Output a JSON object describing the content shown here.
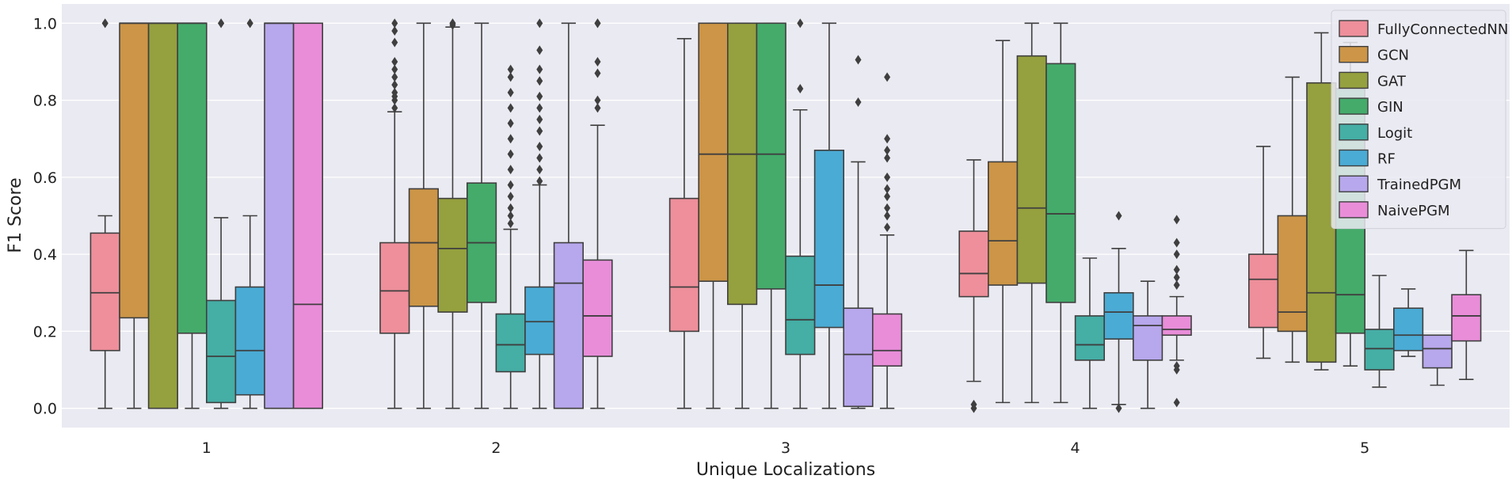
{
  "chart_data": {
    "type": "boxplot",
    "xlabel": "Unique Localizations",
    "ylabel": "F1 Score",
    "ylim": [
      -0.05,
      1.05
    ],
    "yticks": [
      0.0,
      0.2,
      0.4,
      0.6,
      0.8,
      1.0
    ],
    "ytick_labels": [
      "0.0",
      "0.2",
      "0.4",
      "0.6",
      "0.8",
      "1.0"
    ],
    "categories": [
      "1",
      "2",
      "3",
      "4",
      "5"
    ],
    "grid": true,
    "legend_position": "top-right",
    "series": [
      {
        "name": "FullyConnectedNN",
        "color": "#ee8f9b",
        "boxes": [
          {
            "whislo": 0.0,
            "q1": 0.15,
            "med": 0.3,
            "q3": 0.455,
            "whishi": 0.5,
            "fliers": [
              1.0,
              1.0
            ]
          },
          {
            "whislo": 0.0,
            "q1": 0.195,
            "med": 0.305,
            "q3": 0.43,
            "whishi": 0.77,
            "fliers": [
              0.78,
              0.8,
              0.81,
              0.82,
              0.84,
              0.86,
              0.88,
              0.9,
              0.95,
              0.98,
              1.0
            ]
          },
          {
            "whislo": 0.0,
            "q1": 0.2,
            "med": 0.315,
            "q3": 0.545,
            "whishi": 0.96,
            "fliers": []
          },
          {
            "whislo": 0.07,
            "q1": 0.29,
            "med": 0.35,
            "q3": 0.46,
            "whishi": 0.645,
            "fliers": [
              0.0,
              0.01
            ]
          },
          {
            "whislo": 0.13,
            "q1": 0.21,
            "med": 0.335,
            "q3": 0.4,
            "whishi": 0.68,
            "fliers": []
          }
        ]
      },
      {
        "name": "GCN",
        "color": "#cc9547",
        "boxes": [
          {
            "whislo": 0.0,
            "q1": 0.235,
            "med": 1.0,
            "q3": 1.0,
            "whishi": 1.0,
            "fliers": []
          },
          {
            "whislo": 0.0,
            "q1": 0.265,
            "med": 0.43,
            "q3": 0.57,
            "whishi": 1.0,
            "fliers": []
          },
          {
            "whislo": 0.0,
            "q1": 0.33,
            "med": 0.66,
            "q3": 1.0,
            "whishi": 1.0,
            "fliers": []
          },
          {
            "whislo": 0.015,
            "q1": 0.32,
            "med": 0.435,
            "q3": 0.64,
            "whishi": 0.955,
            "fliers": []
          },
          {
            "whislo": 0.12,
            "q1": 0.2,
            "med": 0.25,
            "q3": 0.5,
            "whishi": 0.86,
            "fliers": []
          }
        ]
      },
      {
        "name": "GAT",
        "color": "#95a03e",
        "boxes": [
          {
            "whislo": 0.0,
            "q1": 0.0,
            "med": 1.0,
            "q3": 1.0,
            "whishi": 1.0,
            "fliers": []
          },
          {
            "whislo": 0.0,
            "q1": 0.25,
            "med": 0.415,
            "q3": 0.545,
            "whishi": 0.99,
            "fliers": [
              0.995,
              1.0,
              1.0
            ]
          },
          {
            "whislo": 0.0,
            "q1": 0.27,
            "med": 0.66,
            "q3": 1.0,
            "whishi": 1.0,
            "fliers": []
          },
          {
            "whislo": 0.015,
            "q1": 0.325,
            "med": 0.52,
            "q3": 0.915,
            "whishi": 1.0,
            "fliers": []
          },
          {
            "whislo": 0.1,
            "q1": 0.12,
            "med": 0.3,
            "q3": 0.845,
            "whishi": 0.975,
            "fliers": []
          }
        ]
      },
      {
        "name": "GIN",
        "color": "#44ab6b",
        "boxes": [
          {
            "whislo": 0.0,
            "q1": 0.195,
            "med": 1.0,
            "q3": 1.0,
            "whishi": 1.0,
            "fliers": []
          },
          {
            "whislo": 0.0,
            "q1": 0.275,
            "med": 0.43,
            "q3": 0.585,
            "whishi": 1.0,
            "fliers": []
          },
          {
            "whislo": 0.0,
            "q1": 0.31,
            "med": 0.66,
            "q3": 1.0,
            "whishi": 1.0,
            "fliers": []
          },
          {
            "whislo": 0.015,
            "q1": 0.275,
            "med": 0.505,
            "q3": 0.895,
            "whishi": 1.0,
            "fliers": []
          },
          {
            "whislo": 0.11,
            "q1": 0.195,
            "med": 0.295,
            "q3": 0.83,
            "whishi": 0.95,
            "fliers": []
          }
        ]
      },
      {
        "name": "Logit",
        "color": "#45aea5",
        "boxes": [
          {
            "whislo": 0.0,
            "q1": 0.015,
            "med": 0.135,
            "q3": 0.28,
            "whishi": 0.495,
            "fliers": [
              1.0,
              1.0
            ]
          },
          {
            "whislo": 0.0,
            "q1": 0.095,
            "med": 0.165,
            "q3": 0.245,
            "whishi": 0.465,
            "fliers": [
              0.48,
              0.5,
              0.52,
              0.55,
              0.58,
              0.62,
              0.66,
              0.7,
              0.74,
              0.78,
              0.82,
              0.86,
              0.88
            ]
          },
          {
            "whislo": 0.0,
            "q1": 0.14,
            "med": 0.23,
            "q3": 0.395,
            "whishi": 0.775,
            "fliers": [
              0.83,
              1.0
            ]
          },
          {
            "whislo": 0.0,
            "q1": 0.125,
            "med": 0.165,
            "q3": 0.24,
            "whishi": 0.39,
            "fliers": []
          },
          {
            "whislo": 0.055,
            "q1": 0.1,
            "med": 0.155,
            "q3": 0.205,
            "whishi": 0.345,
            "fliers": []
          }
        ]
      },
      {
        "name": "RF",
        "color": "#4aabd5",
        "boxes": [
          {
            "whislo": 0.0,
            "q1": 0.035,
            "med": 0.15,
            "q3": 0.315,
            "whishi": 0.5,
            "fliers": [
              1.0,
              1.0
            ]
          },
          {
            "whislo": 0.0,
            "q1": 0.14,
            "med": 0.225,
            "q3": 0.315,
            "whishi": 0.58,
            "fliers": [
              0.59,
              0.62,
              0.65,
              0.68,
              0.72,
              0.75,
              0.78,
              0.81,
              0.85,
              0.88,
              0.93,
              1.0
            ]
          },
          {
            "whislo": 0.0,
            "q1": 0.21,
            "med": 0.32,
            "q3": 0.67,
            "whishi": 1.0,
            "fliers": []
          },
          {
            "whislo": 0.01,
            "q1": 0.18,
            "med": 0.25,
            "q3": 0.3,
            "whishi": 0.415,
            "fliers": [
              0.5,
              0.0
            ]
          },
          {
            "whislo": 0.135,
            "q1": 0.15,
            "med": 0.19,
            "q3": 0.26,
            "whishi": 0.31,
            "fliers": []
          }
        ]
      },
      {
        "name": "TrainedPGM",
        "color": "#b7a7ec",
        "boxes": [
          {
            "whislo": 0.0,
            "q1": 0.0,
            "med": 1.0,
            "q3": 1.0,
            "whishi": 1.0,
            "fliers": []
          },
          {
            "whislo": 0.0,
            "q1": 0.0,
            "med": 0.325,
            "q3": 0.43,
            "whishi": 1.0,
            "fliers": []
          },
          {
            "whislo": 0.0,
            "q1": 0.005,
            "med": 0.14,
            "q3": 0.26,
            "whishi": 0.64,
            "fliers": [
              0.795,
              0.905
            ]
          },
          {
            "whislo": 0.0,
            "q1": 0.125,
            "med": 0.215,
            "q3": 0.24,
            "whishi": 0.33,
            "fliers": []
          },
          {
            "whislo": 0.06,
            "q1": 0.105,
            "med": 0.155,
            "q3": 0.19,
            "whishi": 0.19,
            "fliers": []
          }
        ]
      },
      {
        "name": "NaivePGM",
        "color": "#e98dd9",
        "boxes": [
          {
            "whislo": 0.0,
            "q1": 0.0,
            "med": 0.27,
            "q3": 1.0,
            "whishi": 1.0,
            "fliers": []
          },
          {
            "whislo": 0.0,
            "q1": 0.135,
            "med": 0.24,
            "q3": 0.385,
            "whishi": 0.735,
            "fliers": [
              0.78,
              0.8,
              0.87,
              0.9,
              1.0,
              1.0
            ]
          },
          {
            "whislo": 0.0,
            "q1": 0.11,
            "med": 0.15,
            "q3": 0.245,
            "whishi": 0.45,
            "fliers": [
              0.47,
              0.5,
              0.52,
              0.55,
              0.57,
              0.6,
              0.65,
              0.67,
              0.7,
              0.86
            ]
          },
          {
            "whislo": 0.125,
            "q1": 0.19,
            "med": 0.205,
            "q3": 0.24,
            "whishi": 0.29,
            "fliers": [
              0.015,
              0.1,
              0.11,
              0.32,
              0.34,
              0.36,
              0.4,
              0.43,
              0.49
            ]
          },
          {
            "whislo": 0.075,
            "q1": 0.175,
            "med": 0.24,
            "q3": 0.295,
            "whishi": 0.41,
            "fliers": []
          }
        ]
      }
    ]
  }
}
